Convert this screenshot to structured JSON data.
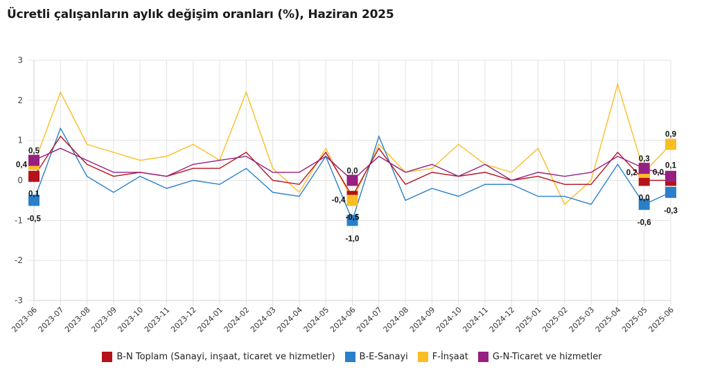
{
  "title": "Ücretli çalışanların aylık değişim oranları (%), Haziran 2025",
  "chart_data": {
    "type": "line",
    "title": "Ücretli çalışanların aylık değişim oranları (%), Haziran 2025",
    "xlabel": "",
    "ylabel": "",
    "ylim": [
      -3,
      3
    ],
    "yticks": [
      "3",
      "2",
      "1",
      "0",
      "-1",
      "-2",
      "-3"
    ],
    "ytick_values": [
      3,
      2,
      1,
      0,
      -1,
      -2,
      -3
    ],
    "grid": true,
    "legend_position": "bottom",
    "categories": [
      "2023-06",
      "2023-07",
      "2023-08",
      "2023-09",
      "2023-10",
      "2023-11",
      "2023-12",
      "2024-01",
      "2024-02",
      "2024-03",
      "2024-04",
      "2024-05",
      "2024-06",
      "2024-07",
      "2024-08",
      "2024-09",
      "2024-10",
      "2024-11",
      "2024-12",
      "2025-01",
      "2025-02",
      "2025-03",
      "2025-04",
      "2025-05",
      "2025-06"
    ],
    "series": [
      {
        "name": "B-N Toplam (Sanayi, inşaat, ticaret ve hizmetler)",
        "color": "#b5121b",
        "values": [
          0.1,
          1.1,
          0.4,
          0.1,
          0.2,
          0.1,
          0.3,
          0.3,
          0.7,
          0.0,
          -0.1,
          0.7,
          -0.4,
          0.8,
          -0.1,
          0.2,
          0.1,
          0.2,
          0.0,
          0.1,
          -0.1,
          -0.1,
          0.7,
          0.0,
          0.0
        ]
      },
      {
        "name": "B-E-Sanayi",
        "color": "#2a7fc9",
        "values": [
          -0.5,
          1.3,
          0.1,
          -0.3,
          0.1,
          -0.2,
          0.0,
          -0.1,
          0.3,
          -0.3,
          -0.4,
          0.6,
          -1.0,
          1.1,
          -0.5,
          -0.2,
          -0.4,
          -0.1,
          -0.1,
          -0.4,
          -0.4,
          -0.6,
          0.4,
          -0.6,
          -0.3
        ]
      },
      {
        "name": "F-İnşaat",
        "color": "#fbbd24",
        "values": [
          0.4,
          2.2,
          0.9,
          0.7,
          0.5,
          0.6,
          0.9,
          0.5,
          2.2,
          0.3,
          -0.3,
          0.8,
          -0.5,
          0.9,
          0.2,
          0.3,
          0.9,
          0.4,
          0.2,
          0.8,
          -0.6,
          0.0,
          2.4,
          0.2,
          0.9
        ]
      },
      {
        "name": "G-N-Ticaret ve hizmetler",
        "color": "#961f80",
        "values": [
          0.5,
          0.8,
          0.5,
          0.2,
          0.2,
          0.1,
          0.4,
          0.5,
          0.6,
          0.2,
          0.2,
          0.6,
          0.0,
          0.6,
          0.2,
          0.4,
          0.1,
          0.4,
          0.0,
          0.2,
          0.1,
          0.2,
          0.6,
          0.3,
          0.1
        ]
      }
    ],
    "highlighted_points": [
      {
        "category": "2023-06",
        "labels": [
          "0,1",
          "-0,5",
          "0,4",
          "0,5"
        ]
      },
      {
        "category": "2024-06",
        "labels": [
          "-0,4",
          "-1,0",
          "-0,5",
          "0,0"
        ]
      },
      {
        "category": "2025-05",
        "labels": [
          "0,0",
          "-0,6",
          "0,2",
          "0,3"
        ]
      },
      {
        "category": "2025-06",
        "labels": [
          "0,0",
          "-0,3",
          "0,9",
          "0,1"
        ]
      }
    ]
  },
  "legend": [
    {
      "label": "B-N Toplam (Sanayi, inşaat, ticaret ve hizmetler)",
      "color": "#b5121b"
    },
    {
      "label": "B-E-Sanayi",
      "color": "#2a7fc9"
    },
    {
      "label": "F-İnşaat",
      "color": "#fbbd24"
    },
    {
      "label": "G-N-Ticaret ve hizmetler",
      "color": "#961f80"
    }
  ]
}
